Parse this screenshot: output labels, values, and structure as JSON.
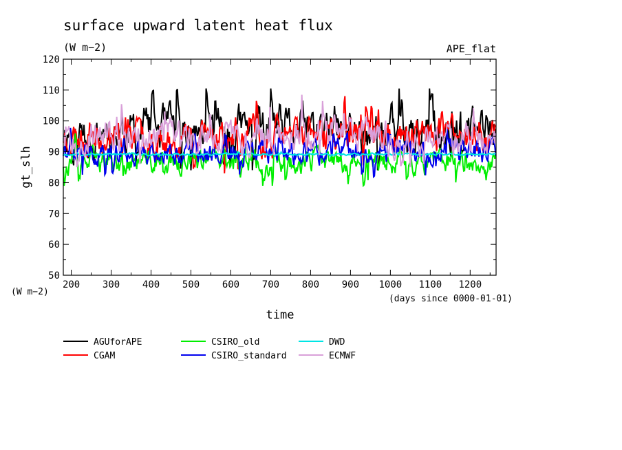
{
  "chart_data": {
    "type": "line",
    "title": "surface upward latent heat flux",
    "units": "(W m−2)",
    "experiment": "APE_flat",
    "xlabel": "time",
    "xunits": "(days since 0000-01-01)",
    "ylabel": "gt_slh",
    "yunits": "(W m−2)",
    "xlim": [
      180,
      1265
    ],
    "ylim": [
      50,
      120
    ],
    "xticks": [
      200,
      300,
      400,
      500,
      600,
      700,
      800,
      900,
      1000,
      1100,
      1200
    ],
    "yticks": [
      50,
      60,
      70,
      80,
      90,
      100,
      110,
      120
    ],
    "grid": false,
    "legend_position": "bottom",
    "series": [
      {
        "name": "AGUforAPE",
        "color": "#000000",
        "mean": 97,
        "amp": 6.5,
        "min": 84,
        "max": 110.5,
        "seed": 11
      },
      {
        "name": "CGAM",
        "color": "#ff0000",
        "mean": 95,
        "amp": 5,
        "min": 83,
        "max": 108,
        "seed": 23
      },
      {
        "name": "CSIRO_old",
        "color": "#00ee00",
        "mean": 86.5,
        "amp": 3.5,
        "min": 79,
        "max": 96,
        "seed": 37
      },
      {
        "name": "CSIRO_standard",
        "color": "#0000ee",
        "mean": 90,
        "amp": 3.5,
        "min": 78,
        "max": 104,
        "seed": 41
      },
      {
        "name": "DWD",
        "color": "#00e5e5",
        "mean": 89.2,
        "amp": 0.3,
        "min": 88.6,
        "max": 90.2,
        "seed": 53
      },
      {
        "name": "ECMWF",
        "color": "#d9a0d9",
        "mean": 95,
        "amp": 4.5,
        "min": 85,
        "max": 108.5,
        "seed": 67
      }
    ]
  }
}
